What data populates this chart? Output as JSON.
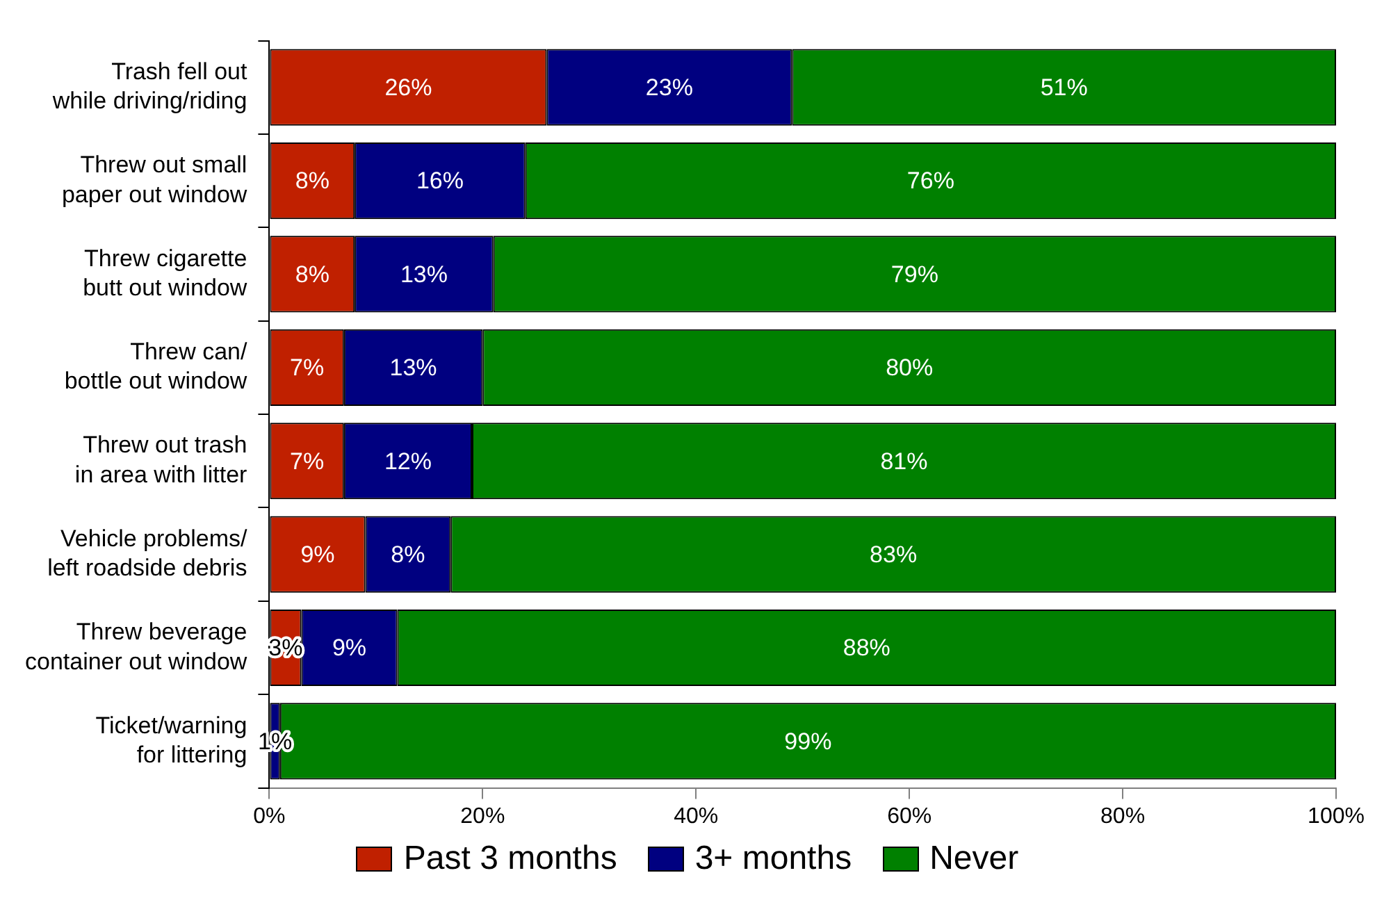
{
  "chart_data": {
    "type": "bar",
    "orientation": "horizontal",
    "stacked": true,
    "categories": [
      "Trash fell out\nwhile driving/riding",
      "Threw out small\npaper out window",
      "Threw cigarette\nbutt out window",
      "Threw can/\nbottle out window",
      "Threw out trash\nin area with litter",
      "Vehicle problems/\nleft roadside debris",
      "Threw beverage\ncontainer out window",
      "Ticket/warning\nfor littering"
    ],
    "series": [
      {
        "name": "Past 3 months",
        "color": "#c02000",
        "values": [
          26,
          8,
          8,
          7,
          7,
          9,
          3,
          0
        ],
        "value_labels": [
          "26%",
          "8%",
          "8%",
          "7%",
          "7%",
          "9%",
          "3%",
          null
        ]
      },
      {
        "name": "3+ months",
        "color": "#000080",
        "values": [
          23,
          16,
          13,
          13,
          12,
          8,
          9,
          1
        ],
        "value_labels": [
          "23%",
          "16%",
          "13%",
          "13%",
          "12%",
          "8%",
          "9%",
          "1%"
        ]
      },
      {
        "name": "Never",
        "color": "#008000",
        "values": [
          51,
          76,
          79,
          80,
          81,
          83,
          88,
          99
        ],
        "value_labels": [
          "51%",
          "76%",
          "79%",
          "80%",
          "81%",
          "83%",
          "88%",
          "99%"
        ]
      }
    ],
    "xlim": [
      0,
      100
    ],
    "xticks": [
      {
        "value": 0,
        "label": "0%"
      },
      {
        "value": 20,
        "label": "20%"
      },
      {
        "value": 40,
        "label": "40%"
      },
      {
        "value": 60,
        "label": "60%"
      },
      {
        "value": 80,
        "label": "80%"
      },
      {
        "value": 100,
        "label": "100%"
      }
    ],
    "grid": false,
    "legend": "bottom"
  }
}
